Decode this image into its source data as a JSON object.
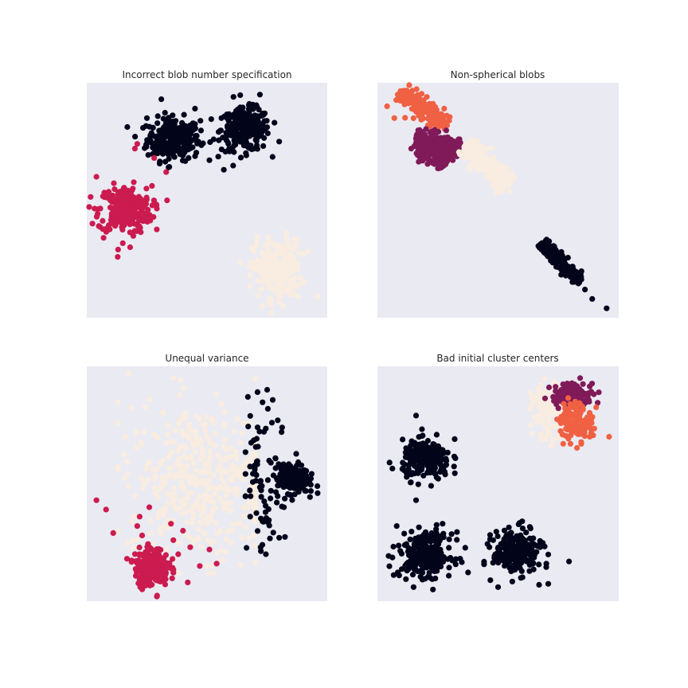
{
  "figure": {
    "background": "#ffffff",
    "axes_background": "#eaeaf2"
  },
  "palette": {
    "c0": "#03051a",
    "c1": "#cb1b4f",
    "c2": "#f9ece0",
    "c3": "#801a59",
    "c4": "#f06043"
  },
  "chart_data": [
    {
      "type": "scatter",
      "title": "Incorrect blob number specification",
      "xlabel": "",
      "ylabel": "",
      "ticks": "none",
      "grid": false,
      "legend": "none",
      "xlim": [
        0,
        10
      ],
      "ylim": [
        0,
        10
      ],
      "clusters": [
        {
          "color": "c0",
          "n": 260,
          "center": [
            3.6,
            7.6
          ],
          "spread": [
            0.55,
            0.45
          ],
          "points": [
            [
              3.1,
              9.3
            ],
            [
              2.5,
              8.5
            ],
            [
              3.4,
              6.4
            ],
            [
              4.5,
              8.9
            ]
          ]
        },
        {
          "color": "c0",
          "n": 260,
          "center": [
            6.6,
            8.0
          ],
          "spread": [
            0.5,
            0.45
          ],
          "points": [
            [
              6.1,
              9.4
            ],
            [
              5.6,
              8.5
            ],
            [
              5.7,
              6.3
            ],
            [
              8.0,
              7.5
            ],
            [
              7.2,
              9.5
            ]
          ]
        },
        {
          "color": "c1",
          "n": 260,
          "center": [
            1.6,
            4.6
          ],
          "spread": [
            0.55,
            0.5
          ],
          "points": [
            [
              0.4,
              6.0
            ],
            [
              0.5,
              3.9
            ],
            [
              1.8,
              3.0
            ],
            [
              2.1,
              7.4
            ],
            [
              3.3,
              6.2
            ],
            [
              2.8,
              6.8
            ],
            [
              2.0,
              7.2
            ],
            [
              0.7,
              3.4
            ],
            [
              1.3,
              2.9
            ]
          ]
        },
        {
          "color": "c2",
          "n": 260,
          "center": [
            7.9,
            2.1
          ],
          "spread": [
            0.5,
            0.6
          ],
          "points": [
            [
              8.3,
              3.6
            ],
            [
              9.6,
              0.9
            ],
            [
              7.3,
              0.5
            ],
            [
              7.6,
              0.6
            ],
            [
              8.8,
              0.9
            ]
          ]
        }
      ]
    },
    {
      "type": "scatter",
      "title": "Non-spherical blobs",
      "xlabel": "",
      "ylabel": "",
      "ticks": "none",
      "grid": false,
      "legend": "none",
      "xlim": [
        0,
        10
      ],
      "ylim": [
        0,
        10
      ],
      "clusters": [
        {
          "color": "c4",
          "n": 180,
          "line": [
            [
              0.9,
              9.6
            ],
            [
              2.9,
              8.2
            ]
          ],
          "width": 0.2,
          "points": [
            [
              0.4,
              9.0
            ],
            [
              1.1,
              9.5
            ],
            [
              0.7,
              8.5
            ],
            [
              2.3,
              7.6
            ]
          ]
        },
        {
          "color": "c3",
          "n": 180,
          "line": [
            [
              1.6,
              7.7
            ],
            [
              3.4,
              7.2
            ]
          ],
          "width": 0.22,
          "points": [
            [
              2.7,
              6.5
            ],
            [
              1.4,
              7.2
            ],
            [
              3.4,
              7.6
            ]
          ]
        },
        {
          "color": "c3",
          "n": 120,
          "line": [
            [
              1.7,
              7.5
            ],
            [
              2.8,
              6.5
            ]
          ],
          "width": 0.2,
          "points": []
        },
        {
          "color": "c2",
          "n": 220,
          "line": [
            [
              3.7,
              7.4
            ],
            [
              5.4,
              5.6
            ]
          ],
          "width": 0.22,
          "points": [
            [
              5.5,
              5.4
            ]
          ]
        },
        {
          "color": "c0",
          "n": 220,
          "line": [
            [
              6.8,
              3.2
            ],
            [
              8.4,
              1.5
            ]
          ],
          "width": 0.13,
          "points": [
            [
              8.9,
              0.8
            ],
            [
              9.5,
              0.4
            ],
            [
              8.6,
              1.2
            ]
          ]
        }
      ]
    },
    {
      "type": "scatter",
      "title": "Unequal variance",
      "xlabel": "",
      "ylabel": "",
      "ticks": "none",
      "grid": false,
      "legend": "none",
      "xlim": [
        0,
        10
      ],
      "ylim": [
        0,
        10
      ],
      "clusters": [
        {
          "color": "c2",
          "n": 420,
          "center": [
            4.8,
            5.1
          ],
          "spread": [
            1.55,
            1.6
          ],
          "clip": [
            [
              1.3,
              7.0
            ],
            [
              1.2,
              9.7
            ]
          ],
          "points": [
            [
              3.6,
              9.5
            ],
            [
              3.9,
              9.4
            ],
            [
              5.4,
              8.8
            ],
            [
              1.6,
              7.0
            ],
            [
              1.7,
              5.4
            ],
            [
              6.0,
              2.5
            ],
            [
              5.0,
              1.5
            ]
          ]
        },
        {
          "color": "c0",
          "n": 240,
          "center": [
            8.6,
            5.2
          ],
          "spread": [
            0.3,
            0.3
          ],
          "points": []
        },
        {
          "color": "c0",
          "n": 80,
          "center": [
            7.4,
            5.2
          ],
          "spread": [
            0.5,
            1.5
          ],
          "clip": [
            [
              6.6,
              8.5
            ],
            [
              2.0,
              9.2
            ]
          ],
          "points": [
            [
              7.1,
              8.9
            ],
            [
              7.5,
              9.0
            ],
            [
              6.7,
              8.7
            ],
            [
              8.1,
              7.2
            ],
            [
              7.7,
              7.6
            ],
            [
              9.6,
              4.6
            ],
            [
              8.2,
              4.0
            ],
            [
              7.9,
              4.2
            ],
            [
              8.0,
              2.7
            ],
            [
              7.3,
              2.4
            ]
          ]
        },
        {
          "color": "c1",
          "n": 240,
          "center": [
            2.7,
            1.45
          ],
          "spread": [
            0.35,
            0.4
          ],
          "points": [
            [
              0.4,
              4.3
            ],
            [
              0.8,
              3.9
            ],
            [
              1.1,
              2.9
            ],
            [
              2.2,
              3.6
            ],
            [
              2.6,
              4.0
            ],
            [
              4.2,
              0.8
            ],
            [
              4.0,
              3.0
            ],
            [
              5.1,
              2.2
            ],
            [
              5.4,
              1.6
            ],
            [
              4.7,
              1.5
            ],
            [
              3.5,
              3.3
            ],
            [
              4.3,
              2.3
            ],
            [
              3.6,
              2.6
            ],
            [
              3.8,
              2.0
            ],
            [
              2.3,
              2.8
            ],
            [
              2.1,
              3.2
            ]
          ]
        }
      ]
    },
    {
      "type": "scatter",
      "title": "Bad initial cluster centers",
      "xlabel": "",
      "ylabel": "",
      "ticks": "none",
      "grid": false,
      "legend": "none",
      "xlim": [
        0,
        10
      ],
      "ylim": [
        0,
        10
      ],
      "clusters": [
        {
          "color": "c0",
          "n": 240,
          "center": [
            2.05,
            6.0
          ],
          "spread": [
            0.5,
            0.4
          ],
          "points": [
            [
              1.6,
              7.9
            ],
            [
              0.5,
              5.9
            ],
            [
              1.6,
              4.3
            ],
            [
              3.2,
              6.9
            ]
          ]
        },
        {
          "color": "c0",
          "n": 260,
          "center": [
            2.0,
            2.0
          ],
          "spread": [
            0.55,
            0.45
          ],
          "points": [
            [
              0.8,
              3.2
            ],
            [
              0.9,
              1.1
            ],
            [
              1.5,
              0.6
            ],
            [
              2.3,
              0.5
            ],
            [
              2.7,
              3.3
            ]
          ]
        },
        {
          "color": "c0",
          "n": 260,
          "center": [
            5.8,
            2.1
          ],
          "spread": [
            0.5,
            0.45
          ],
          "points": [
            [
              4.8,
              2.6
            ],
            [
              6.0,
              3.4
            ],
            [
              6.7,
              0.7
            ],
            [
              5.0,
              0.6
            ],
            [
              7.0,
              1.6
            ]
          ]
        },
        {
          "color": "c2",
          "n": 160,
          "center": [
            7.1,
            8.1
          ],
          "spread": [
            0.35,
            0.55
          ],
          "points": [
            [
              7.2,
              6.6
            ],
            [
              7.0,
              7.0
            ]
          ]
        },
        {
          "color": "c3",
          "n": 130,
          "center": [
            8.1,
            8.8
          ],
          "spread": [
            0.45,
            0.25
          ],
          "points": [
            [
              8.4,
              9.5
            ]
          ]
        },
        {
          "color": "c4",
          "n": 130,
          "center": [
            8.2,
            7.7
          ],
          "spread": [
            0.35,
            0.4
          ],
          "points": [
            [
              9.6,
              7.0
            ],
            [
              8.8,
              7.0
            ],
            [
              7.7,
              6.7
            ],
            [
              8.0,
              6.7
            ]
          ]
        }
      ]
    }
  ]
}
